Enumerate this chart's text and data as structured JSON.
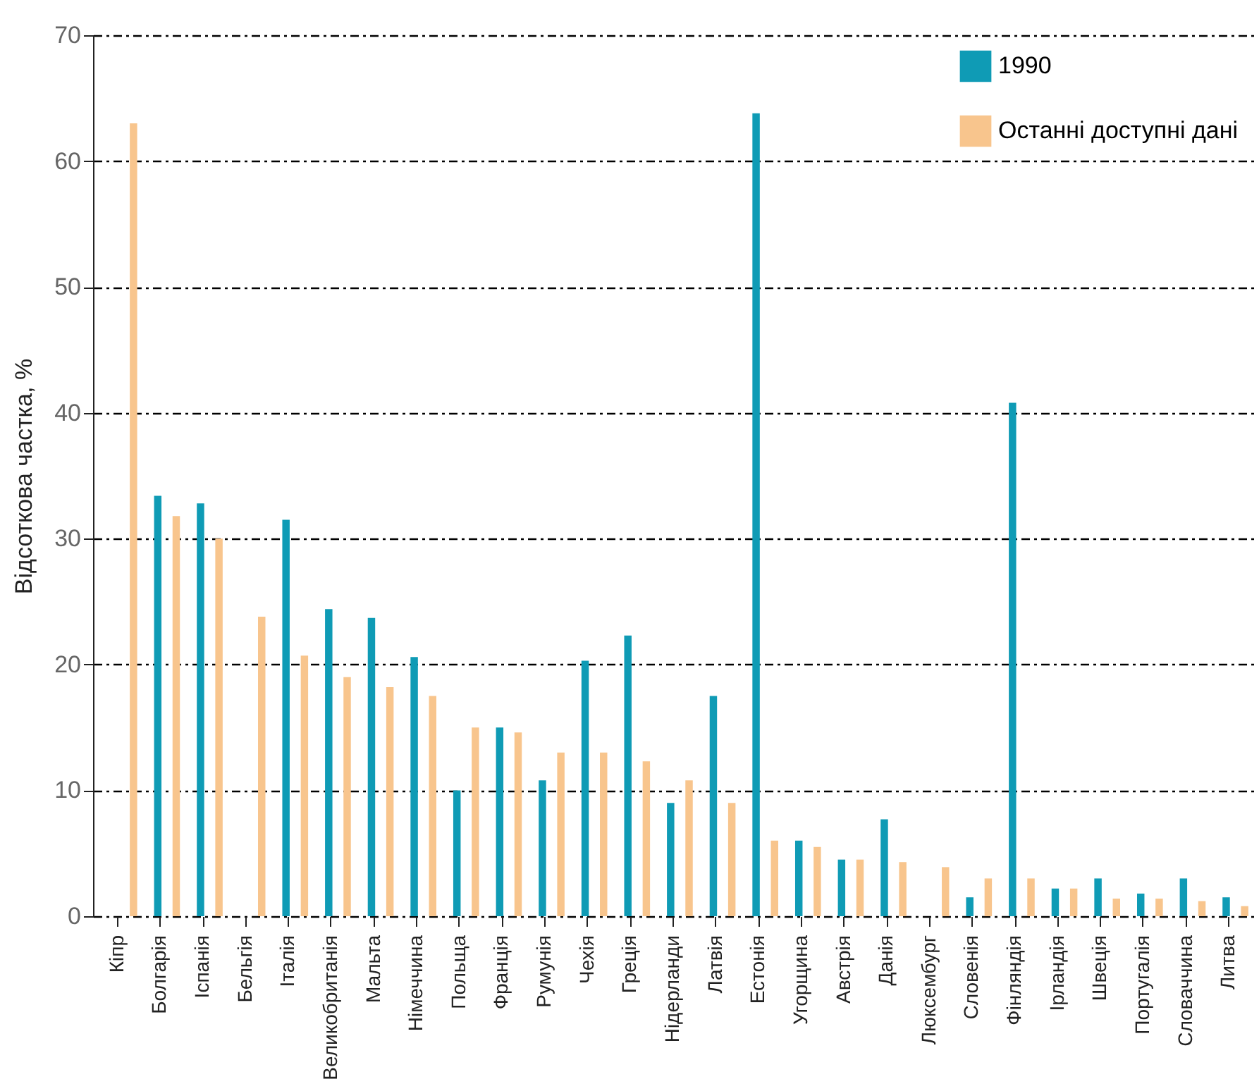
{
  "chart_data": {
    "type": "bar",
    "ylabel": "Відсоткова частка, %",
    "categories": [
      "Кіпр",
      "Болгарія",
      "Іспанія",
      "Бельгія",
      "Італія",
      "Великобританія",
      "Мальта",
      "Німеччина",
      "Польща",
      "Франція",
      "Румунія",
      "Чехія",
      "Греція",
      "Нідерланди",
      "Латвія",
      "Естонія",
      "Угорщина",
      "Австрія",
      "Данія",
      "Люксембург",
      "Словенія",
      "Фінляндія",
      "Ірландія",
      "Швеція",
      "Португалія",
      "Словаччина",
      "Литва"
    ],
    "series": [
      {
        "name": "1990",
        "color": "#0f9bb5",
        "values": [
          null,
          33.4,
          32.8,
          null,
          31.5,
          24.4,
          23.7,
          20.6,
          10,
          15,
          10.8,
          20.3,
          22.3,
          9,
          17.5,
          63.8,
          6,
          4.5,
          7.7,
          null,
          1.5,
          40.8,
          2.2,
          3,
          1.8,
          3,
          1.5
        ]
      },
      {
        "name": "Останні доступні дані",
        "color": "#f8c58d",
        "values": [
          63,
          31.8,
          30,
          23.8,
          20.7,
          19,
          18.2,
          17.5,
          15,
          14.6,
          13,
          13,
          12.3,
          10.8,
          9,
          6,
          5.5,
          4.5,
          4.3,
          3.9,
          3,
          3,
          2.2,
          1.4,
          1.4,
          1.2,
          0.8
        ]
      }
    ],
    "ylim": [
      0,
      70
    ],
    "yticks": [
      0,
      10,
      20,
      30,
      40,
      50,
      60,
      70
    ],
    "grid": "y",
    "legend": "top right"
  }
}
